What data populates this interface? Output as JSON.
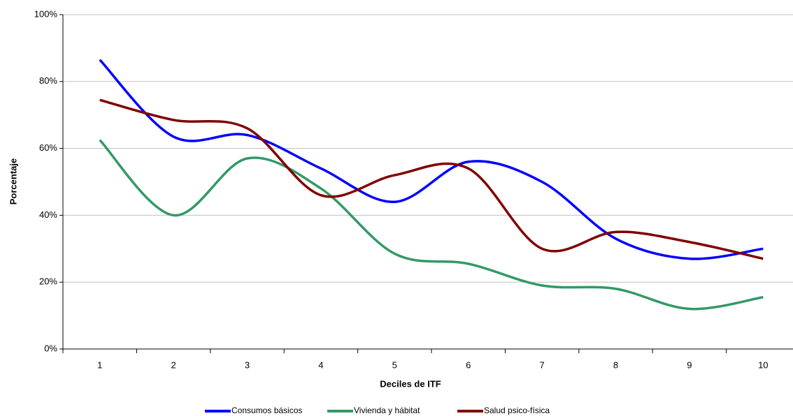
{
  "chart_data": {
    "type": "line",
    "x_label": "Deciles de ITF",
    "y_label": "Porcentaje",
    "categories": [
      "1",
      "2",
      "3",
      "4",
      "5",
      "6",
      "7",
      "8",
      "9",
      "10"
    ],
    "series": [
      {
        "name": "Consumos básicos",
        "color": "#0000ff",
        "values": [
          86.5,
          63.5,
          64,
          54,
          44,
          56,
          50,
          33,
          27,
          30
        ]
      },
      {
        "name": "Vivienda y hábitat",
        "color": "#339966",
        "values": [
          62.5,
          40,
          57,
          48,
          28.5,
          25.5,
          19,
          18,
          12,
          15.5
        ]
      },
      {
        "name": "Salud psico-física",
        "color": "#800000",
        "values": [
          74.5,
          68.5,
          66,
          46,
          52,
          54,
          30,
          35,
          32,
          27
        ]
      }
    ],
    "ylim": [
      0,
      100
    ],
    "yticks": [
      {
        "value": 0,
        "label": "0%"
      },
      {
        "value": 20,
        "label": "20%"
      },
      {
        "value": 40,
        "label": "40%"
      },
      {
        "value": 60,
        "label": "60%"
      },
      {
        "value": 80,
        "label": "80%"
      },
      {
        "value": 100,
        "label": "100%"
      }
    ],
    "grid": true,
    "legend": "bottom"
  }
}
